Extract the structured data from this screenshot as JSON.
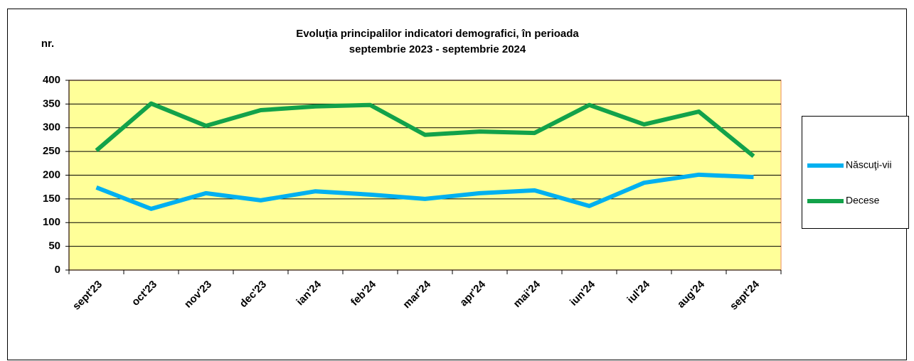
{
  "chart_data": {
    "type": "line",
    "title": [
      "Evoluţia principalilor  indicatori demografici, în perioada",
      "septembrie 2023 - septembrie 2024"
    ],
    "y_label": "nr.",
    "categories": [
      "sept'23",
      "oct'23",
      "nov'23",
      "dec'23",
      "ian'24",
      "feb'24",
      "mar'24",
      "apr'24",
      "mai'24",
      "iun'24",
      "iul'24",
      "aug'24",
      "sept'24"
    ],
    "series": [
      {
        "name": "Născuţi-vii",
        "color": "#00b0f0",
        "values": [
          174,
          129,
          162,
          147,
          166,
          159,
          150,
          162,
          168,
          135,
          184,
          201,
          196
        ]
      },
      {
        "name": "Decese",
        "color": "#12a24a",
        "values": [
          252,
          351,
          304,
          337,
          345,
          348,
          285,
          292,
          289,
          348,
          307,
          334,
          240
        ]
      }
    ],
    "ylim": [
      0,
      400
    ],
    "yticks": [
      0,
      50,
      100,
      150,
      200,
      250,
      300,
      350,
      400
    ],
    "grid": true,
    "legend": "right",
    "plot_background": "#ffff99"
  }
}
